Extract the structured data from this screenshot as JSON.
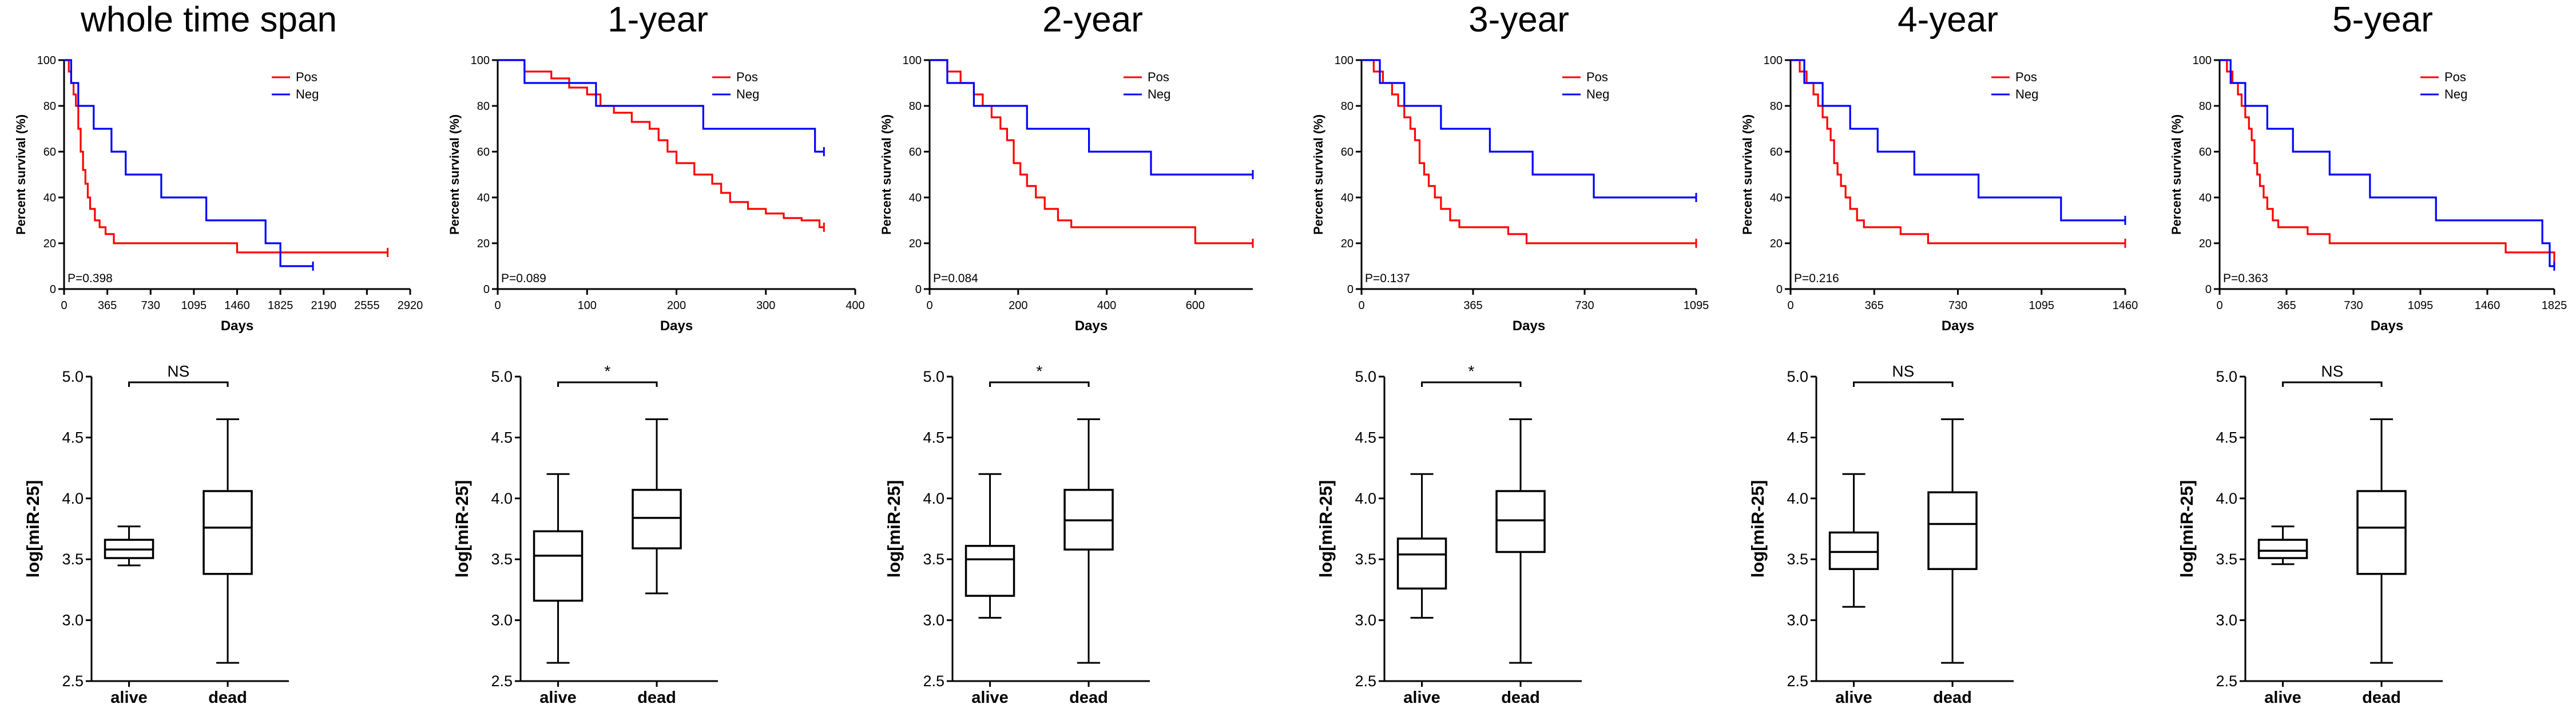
{
  "chart_data": [
    {
      "type": "line",
      "subtype": "kaplan-meier",
      "panel": "survival",
      "title": "whole time span",
      "xlabel": "Days",
      "ylabel": "Percent survival (%)",
      "xlim": [
        0,
        2920
      ],
      "ylim": [
        0,
        100
      ],
      "xticks": [
        0,
        365,
        730,
        1095,
        1460,
        1825,
        2190,
        2555,
        2920
      ],
      "yticks": [
        0,
        20,
        40,
        60,
        80,
        100
      ],
      "legend_position": "top-right",
      "annotation": "P=0.398",
      "series": [
        {
          "name": "Pos",
          "color": "#ff0000",
          "x": [
            0,
            40,
            60,
            80,
            100,
            120,
            140,
            160,
            180,
            200,
            220,
            260,
            300,
            350,
            420,
            520,
            1460,
            1825,
            2730
          ],
          "y": [
            100,
            95,
            90,
            85,
            80,
            70,
            60,
            52,
            46,
            40,
            35,
            30,
            27,
            24,
            20,
            20,
            16,
            16,
            16
          ]
        },
        {
          "name": "Neg",
          "color": "#0000ff",
          "x": [
            0,
            60,
            120,
            250,
            400,
            520,
            820,
            1200,
            1700,
            1825,
            2100
          ],
          "y": [
            100,
            90,
            80,
            70,
            60,
            50,
            40,
            30,
            20,
            10,
            10
          ]
        }
      ]
    },
    {
      "type": "line",
      "subtype": "kaplan-meier",
      "panel": "survival",
      "title": "1-year",
      "xlabel": "Days",
      "ylabel": "Percent survival (%)",
      "xlim": [
        0,
        400
      ],
      "ylim": [
        0,
        100
      ],
      "xticks": [
        0,
        100,
        200,
        300,
        400
      ],
      "yticks": [
        0,
        20,
        40,
        60,
        80,
        100
      ],
      "legend_position": "top-right",
      "annotation": "P=0.089",
      "series": [
        {
          "name": "Pos",
          "color": "#ff0000",
          "x": [
            0,
            30,
            60,
            80,
            100,
            115,
            130,
            150,
            170,
            180,
            190,
            200,
            220,
            240,
            250,
            260,
            280,
            300,
            320,
            340,
            360,
            365
          ],
          "y": [
            100,
            95,
            92,
            88,
            85,
            80,
            77,
            73,
            70,
            65,
            60,
            55,
            50,
            46,
            42,
            38,
            35,
            33,
            31,
            30,
            27,
            27
          ]
        },
        {
          "name": "Neg",
          "color": "#0000ff",
          "x": [
            0,
            30,
            110,
            230,
            355,
            365
          ],
          "y": [
            100,
            90,
            80,
            70,
            60,
            60
          ]
        }
      ]
    },
    {
      "type": "line",
      "subtype": "kaplan-meier",
      "panel": "survival",
      "title": "2-year",
      "xlabel": "Days",
      "ylabel": "Percent survival (%)",
      "xlim": [
        0,
        730
      ],
      "ylim": [
        0,
        100
      ],
      "xticks": [
        0,
        200,
        400,
        600
      ],
      "yticks": [
        0,
        20,
        40,
        60,
        80,
        100
      ],
      "legend_position": "top-right",
      "annotation": "P=0.084",
      "series": [
        {
          "name": "Pos",
          "color": "#ff0000",
          "x": [
            0,
            40,
            70,
            100,
            120,
            140,
            160,
            175,
            190,
            205,
            220,
            240,
            260,
            290,
            320,
            360,
            600,
            730
          ],
          "y": [
            100,
            95,
            90,
            85,
            80,
            75,
            70,
            65,
            55,
            50,
            45,
            40,
            35,
            30,
            27,
            27,
            20,
            20
          ]
        },
        {
          "name": "Neg",
          "color": "#0000ff",
          "x": [
            0,
            40,
            100,
            220,
            360,
            500,
            730
          ],
          "y": [
            100,
            90,
            80,
            70,
            60,
            50,
            50
          ]
        }
      ]
    },
    {
      "type": "line",
      "subtype": "kaplan-meier",
      "panel": "survival",
      "title": "3-year",
      "xlabel": "Days",
      "ylabel": "Percent survival (%)",
      "xlim": [
        0,
        1095
      ],
      "ylim": [
        0,
        100
      ],
      "xticks": [
        0,
        365,
        730,
        1095
      ],
      "yticks": [
        0,
        20,
        40,
        60,
        80,
        100
      ],
      "legend_position": "top-right",
      "annotation": "P=0.137",
      "series": [
        {
          "name": "Pos",
          "color": "#ff0000",
          "x": [
            0,
            40,
            70,
            100,
            120,
            140,
            160,
            175,
            190,
            205,
            220,
            240,
            260,
            290,
            320,
            360,
            480,
            540,
            1095
          ],
          "y": [
            100,
            95,
            90,
            85,
            80,
            75,
            70,
            65,
            55,
            50,
            45,
            40,
            35,
            30,
            27,
            27,
            24,
            20,
            20
          ]
        },
        {
          "name": "Neg",
          "color": "#0000ff",
          "x": [
            0,
            60,
            140,
            260,
            420,
            560,
            760,
            1095
          ],
          "y": [
            100,
            90,
            80,
            70,
            60,
            50,
            40,
            40
          ]
        }
      ]
    },
    {
      "type": "line",
      "subtype": "kaplan-meier",
      "panel": "survival",
      "title": "4-year",
      "xlabel": "Days",
      "ylabel": "Percent survival (%)",
      "xlim": [
        0,
        1460
      ],
      "ylim": [
        0,
        100
      ],
      "xticks": [
        0,
        365,
        730,
        1095,
        1460
      ],
      "yticks": [
        0,
        20,
        40,
        60,
        80,
        100
      ],
      "legend_position": "top-right",
      "annotation": "P=0.216",
      "series": [
        {
          "name": "Pos",
          "color": "#ff0000",
          "x": [
            0,
            40,
            70,
            100,
            120,
            140,
            160,
            175,
            190,
            205,
            220,
            240,
            260,
            290,
            320,
            360,
            480,
            600,
            1460
          ],
          "y": [
            100,
            95,
            90,
            85,
            80,
            75,
            70,
            65,
            55,
            50,
            45,
            40,
            35,
            30,
            27,
            27,
            24,
            20,
            20
          ]
        },
        {
          "name": "Neg",
          "color": "#0000ff",
          "x": [
            0,
            60,
            140,
            260,
            380,
            540,
            820,
            1180,
            1460
          ],
          "y": [
            100,
            90,
            80,
            70,
            60,
            50,
            40,
            30,
            30
          ]
        }
      ]
    },
    {
      "type": "line",
      "subtype": "kaplan-meier",
      "panel": "survival",
      "title": "5-year",
      "xlabel": "Days",
      "ylabel": "Percent survival (%)",
      "xlim": [
        0,
        1825
      ],
      "ylim": [
        0,
        100
      ],
      "xticks": [
        0,
        365,
        730,
        1095,
        1460,
        1825
      ],
      "yticks": [
        0,
        20,
        40,
        60,
        80,
        100
      ],
      "legend_position": "top-right",
      "annotation": "P=0.363",
      "series": [
        {
          "name": "Pos",
          "color": "#ff0000",
          "x": [
            0,
            40,
            70,
            100,
            120,
            140,
            160,
            175,
            190,
            205,
            220,
            240,
            260,
            290,
            320,
            360,
            480,
            600,
            1460,
            1560,
            1800,
            1825
          ],
          "y": [
            100,
            95,
            90,
            85,
            80,
            75,
            70,
            65,
            55,
            50,
            45,
            40,
            35,
            30,
            27,
            27,
            24,
            20,
            20,
            16,
            16,
            10
          ]
        },
        {
          "name": "Neg",
          "color": "#0000ff",
          "x": [
            0,
            60,
            140,
            260,
            400,
            600,
            820,
            1180,
            1760,
            1800,
            1825
          ],
          "y": [
            100,
            90,
            80,
            70,
            60,
            50,
            40,
            30,
            20,
            10,
            10
          ]
        }
      ]
    },
    {
      "type": "box",
      "panel": "expression",
      "ylabel": "log[miR-25]",
      "ylim": [
        2.5,
        5.0
      ],
      "yticks": [
        "2.5",
        "3.0",
        "3.5",
        "4.0",
        "4.5",
        "5.0"
      ],
      "categories": [
        "alive",
        "dead"
      ],
      "significance": "NS",
      "boxes": [
        {
          "min": 3.45,
          "q1": 3.51,
          "median": 3.58,
          "q3": 3.66,
          "max": 3.77
        },
        {
          "min": 2.65,
          "q1": 3.38,
          "median": 3.76,
          "q3": 4.06,
          "max": 4.65
        }
      ]
    },
    {
      "type": "box",
      "panel": "expression",
      "ylabel": "log[miR-25]",
      "ylim": [
        2.5,
        5.0
      ],
      "yticks": [
        "2.5",
        "3.0",
        "3.5",
        "4.0",
        "4.5",
        "5.0"
      ],
      "categories": [
        "alive",
        "dead"
      ],
      "significance": "*",
      "boxes": [
        {
          "min": 2.65,
          "q1": 3.16,
          "median": 3.53,
          "q3": 3.73,
          "max": 4.2
        },
        {
          "min": 3.22,
          "q1": 3.59,
          "median": 3.84,
          "q3": 4.07,
          "max": 4.65
        }
      ]
    },
    {
      "type": "box",
      "panel": "expression",
      "ylabel": "log[miR-25]",
      "ylim": [
        2.5,
        5.0
      ],
      "yticks": [
        "2.5",
        "3.0",
        "3.5",
        "4.0",
        "4.5",
        "5.0"
      ],
      "categories": [
        "alive",
        "dead"
      ],
      "significance": "*",
      "boxes": [
        {
          "min": 3.02,
          "q1": 3.2,
          "median": 3.5,
          "q3": 3.61,
          "max": 4.2
        },
        {
          "min": 2.65,
          "q1": 3.58,
          "median": 3.82,
          "q3": 4.07,
          "max": 4.65
        }
      ]
    },
    {
      "type": "box",
      "panel": "expression",
      "ylabel": "log[miR-25]",
      "ylim": [
        2.5,
        5.0
      ],
      "yticks": [
        "2.5",
        "3.0",
        "3.5",
        "4.0",
        "4.5",
        "5.0"
      ],
      "categories": [
        "alive",
        "dead"
      ],
      "significance": "*",
      "boxes": [
        {
          "min": 3.02,
          "q1": 3.26,
          "median": 3.54,
          "q3": 3.67,
          "max": 4.2
        },
        {
          "min": 2.65,
          "q1": 3.56,
          "median": 3.82,
          "q3": 4.06,
          "max": 4.65
        }
      ]
    },
    {
      "type": "box",
      "panel": "expression",
      "ylabel": "log[miR-25]",
      "ylim": [
        2.5,
        5.0
      ],
      "yticks": [
        "2.5",
        "3.0",
        "3.5",
        "4.0",
        "4.5",
        "5.0"
      ],
      "categories": [
        "alive",
        "dead"
      ],
      "significance": "NS",
      "boxes": [
        {
          "min": 3.11,
          "q1": 3.42,
          "median": 3.56,
          "q3": 3.72,
          "max": 4.2
        },
        {
          "min": 2.65,
          "q1": 3.42,
          "median": 3.79,
          "q3": 4.05,
          "max": 4.65
        }
      ]
    },
    {
      "type": "box",
      "panel": "expression",
      "ylabel": "log[miR-25]",
      "ylim": [
        2.5,
        5.0
      ],
      "yticks": [
        "2.5",
        "3.0",
        "3.5",
        "4.0",
        "4.5",
        "5.0"
      ],
      "categories": [
        "alive",
        "dead"
      ],
      "significance": "NS",
      "boxes": [
        {
          "min": 3.46,
          "q1": 3.51,
          "median": 3.57,
          "q3": 3.66,
          "max": 3.77
        },
        {
          "min": 2.65,
          "q1": 3.38,
          "median": 3.76,
          "q3": 4.06,
          "max": 4.65
        }
      ]
    }
  ]
}
